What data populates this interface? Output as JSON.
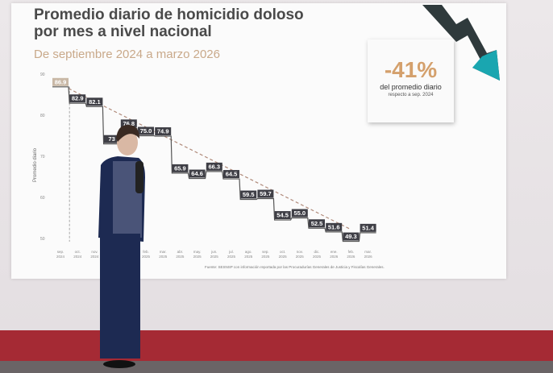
{
  "slide": {
    "title_line1": "Promedio diario de homicidio doloso",
    "title_line2": "por mes a nivel nacional",
    "subtitle": "De septiembre 2024 a marzo 2026",
    "callout": {
      "value": "-41%",
      "line1": "del promedio diario",
      "line2": "respecto a sep. 2024"
    },
    "source": "Fuente: SESNSP con información reportada por las Procuradurías Generales de Justicia y Fiscalías Generales.",
    "arrow_icon": "down-trend-arrow-icon"
  },
  "chart_data": {
    "type": "line",
    "step": true,
    "ylabel": "Promedio diario",
    "ylim": [
      50,
      90
    ],
    "yticks": [
      "90",
      "80",
      "70",
      "60",
      "50"
    ],
    "categories": [
      [
        "sep.",
        "2024"
      ],
      [
        "oct.",
        "2024"
      ],
      [
        "nov.",
        "2024"
      ],
      [
        "dic.",
        "2024"
      ],
      [
        "ene.",
        "2025"
      ],
      [
        "feb.",
        "2025"
      ],
      [
        "mar.",
        "2025"
      ],
      [
        "abr.",
        "2025"
      ],
      [
        "may.",
        "2025"
      ],
      [
        "jun.",
        "2025"
      ],
      [
        "jul.",
        "2025"
      ],
      [
        "ago.",
        "2025"
      ],
      [
        "sep.",
        "2025"
      ],
      [
        "oct.",
        "2025"
      ],
      [
        "nov.",
        "2025"
      ],
      [
        "dic.",
        "2025"
      ],
      [
        "ene.",
        "2026"
      ],
      [
        "feb.",
        "2026"
      ],
      [
        "mar.",
        "2026"
      ]
    ],
    "values": [
      86.9,
      82.9,
      82.1,
      73.0,
      76.8,
      75.0,
      74.9,
      65.9,
      64.6,
      66.3,
      64.5,
      59.5,
      59.7,
      54.5,
      55.0,
      52.5,
      51.6,
      49.3,
      51.4
    ],
    "labels": [
      "86.9",
      "82.9",
      "82.1",
      "73",
      "76.8",
      "75.0",
      "74.9",
      "65.9",
      "64.6",
      "66.3",
      "64.5",
      "59.5",
      "59.7",
      "54.5",
      "55.0",
      "52.5",
      "51.6",
      "49.3",
      "51.4"
    ],
    "trendline": "dashed",
    "grid": false,
    "colors": {
      "first_label": "#c9b8a6",
      "labels": "#3f3f46",
      "trend": "#b08a7a",
      "accent": "#d4a06c",
      "arrow_teal": "#1aa6b0"
    }
  }
}
